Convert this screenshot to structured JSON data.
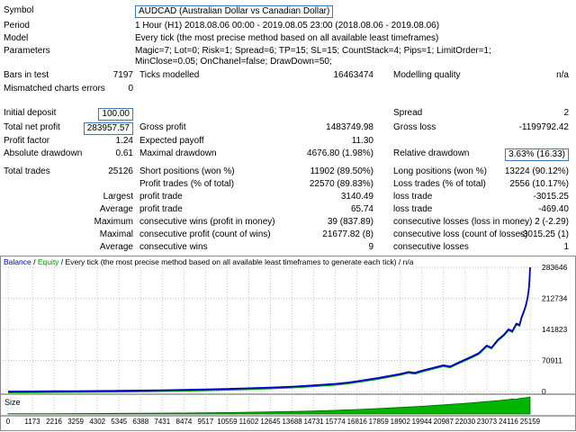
{
  "colors": {
    "highlight_box": "#3a7abf",
    "balance": "#0000c8",
    "equity": "#009900",
    "size_fill": "#00b400",
    "size_stroke": "#006600",
    "grid": "#c6c6c6",
    "separator": "#5a5a5a"
  },
  "report": {
    "rows": [
      {
        "h": 17,
        "cells": [
          {
            "cls": "l1",
            "t": "Symbol",
            "n": "symbol-label"
          },
          {
            "cls": "span",
            "t": "AUDCAD (Australian Dollar vs Canadian Dollar)",
            "box": true,
            "n": "symbol-value"
          }
        ]
      },
      {
        "h": 14,
        "cells": [
          {
            "cls": "l1",
            "t": "Period",
            "n": "period-label"
          },
          {
            "cls": "span",
            "t": "1 Hour (H1) 2018.08.06 00:00 - 2019.08.05 23:00 (2018.08.06 - 2019.08.06)",
            "n": "period-value"
          }
        ]
      },
      {
        "h": 14,
        "cells": [
          {
            "cls": "l1",
            "t": "Model",
            "n": "model-label"
          },
          {
            "cls": "span",
            "t": "Every tick (the most precise method based on all available least timeframes)",
            "n": "model-value"
          }
        ]
      },
      {
        "h": 27,
        "cells": [
          {
            "cls": "l1",
            "t": "Parameters",
            "n": "parameters-label"
          },
          {
            "cls": "span",
            "t": "Magic=7; Lot=0; Risk=1; Spread=6; TP=15; SL=15; CountStack=4; Pips=1; LimitOrder=1; MinClose=0.05; OnChanel=false; DrawDown=50;",
            "n": "parameters-value"
          }
        ]
      },
      {
        "h": 15,
        "cells": [
          {
            "cls": "l1",
            "t": "Bars in test"
          },
          {
            "cls": "v1",
            "t": "7197"
          },
          {
            "cls": "l2",
            "t": "Ticks modelled"
          },
          {
            "cls": "v2",
            "t": "16463474"
          },
          {
            "cls": "l3",
            "t": "Modelling quality"
          },
          {
            "cls": "v3",
            "t": "n/a"
          }
        ]
      },
      {
        "h": 27,
        "cells": [
          {
            "cls": "l1",
            "t": "Mismatched charts errors"
          },
          {
            "cls": "v1",
            "t": "0"
          }
        ]
      },
      {
        "h": 16,
        "cells": [
          {
            "cls": "l1",
            "t": "Initial deposit"
          },
          {
            "cls": "v1",
            "t": "100.00",
            "box": true,
            "n": "initial-deposit-value"
          },
          {
            "cls": "l3",
            "t": "Spread"
          },
          {
            "cls": "v3",
            "t": "2"
          }
        ]
      },
      {
        "h": 15,
        "cells": [
          {
            "cls": "l1",
            "t": "Total net profit"
          },
          {
            "cls": "v1",
            "t": "283957.57",
            "box": true,
            "n": "total-net-profit-value"
          },
          {
            "cls": "l2",
            "t": "Gross profit"
          },
          {
            "cls": "v2",
            "t": "1483749.98"
          },
          {
            "cls": "l3",
            "t": "Gross loss"
          },
          {
            "cls": "v3",
            "t": "-1199792.42"
          }
        ]
      },
      {
        "h": 14,
        "cells": [
          {
            "cls": "l1",
            "t": "Profit factor"
          },
          {
            "cls": "v1",
            "t": "1.24"
          },
          {
            "cls": "l2",
            "t": "Expected payoff"
          },
          {
            "cls": "v2",
            "t": "11.30"
          }
        ]
      },
      {
        "h": 15,
        "cells": [
          {
            "cls": "l1",
            "t": "Absolute drawdown"
          },
          {
            "cls": "v1",
            "t": "0.61"
          },
          {
            "cls": "l2",
            "t": "Maximal drawdown"
          },
          {
            "cls": "v2",
            "t": "4676.80 (1.98%)"
          },
          {
            "cls": "l3",
            "t": "Relative drawdown"
          },
          {
            "cls": "v3",
            "t": "3.63% (16.33)",
            "box": true,
            "n": "relative-drawdown-value"
          }
        ]
      },
      {
        "h": 5,
        "cells": []
      },
      {
        "h": 14,
        "cells": [
          {
            "cls": "l1",
            "t": "Total trades"
          },
          {
            "cls": "v1",
            "t": "25126"
          },
          {
            "cls": "l2",
            "t": "Short positions (won %)"
          },
          {
            "cls": "v2",
            "t": "11902 (89.50%)"
          },
          {
            "cls": "l3",
            "t": "Long positions (won %)"
          },
          {
            "cls": "v3",
            "t": "13224 (90.12%)"
          }
        ]
      },
      {
        "h": 14,
        "cells": [
          {
            "cls": "l2",
            "t": "Profit trades (% of total)"
          },
          {
            "cls": "v2",
            "t": "22570 (89.83%)"
          },
          {
            "cls": "l3",
            "t": "Loss trades (% of total)"
          },
          {
            "cls": "v3",
            "t": "2556 (10.17%)"
          }
        ]
      },
      {
        "h": 14,
        "cells": [
          {
            "cls": "v1",
            "t": "Largest"
          },
          {
            "cls": "l2",
            "t": "profit trade"
          },
          {
            "cls": "v2",
            "t": "3140.49"
          },
          {
            "cls": "l3",
            "t": "loss trade"
          },
          {
            "cls": "v3",
            "t": "-3015.25"
          }
        ]
      },
      {
        "h": 14,
        "cells": [
          {
            "cls": "v1",
            "t": "Average"
          },
          {
            "cls": "l2",
            "t": "profit trade"
          },
          {
            "cls": "v2",
            "t": "65.74"
          },
          {
            "cls": "l3",
            "t": "loss trade"
          },
          {
            "cls": "v3",
            "t": "-469.40"
          }
        ]
      },
      {
        "h": 14,
        "cells": [
          {
            "cls": "v1",
            "t": "Maximum"
          },
          {
            "cls": "l2",
            "t": "consecutive wins (profit in money)"
          },
          {
            "cls": "v2",
            "t": "39 (837.89)"
          },
          {
            "cls": "l3",
            "t": "consecutive losses (loss in money)"
          },
          {
            "cls": "v3",
            "t": "2 (-2.29)"
          }
        ]
      },
      {
        "h": 14,
        "cells": [
          {
            "cls": "v1",
            "t": "Maximal"
          },
          {
            "cls": "l2",
            "t": "consecutive profit (count of wins)"
          },
          {
            "cls": "v2",
            "t": "21677.82 (8)"
          },
          {
            "cls": "l3",
            "t": "consecutive loss (count of losses)"
          },
          {
            "cls": "v3",
            "t": "-3015.25 (1)"
          }
        ]
      },
      {
        "h": 14,
        "cells": [
          {
            "cls": "v1",
            "t": "Average"
          },
          {
            "cls": "l2",
            "t": "consecutive wins"
          },
          {
            "cls": "v2",
            "t": "9"
          },
          {
            "cls": "l3",
            "t": "consecutive losses"
          },
          {
            "cls": "v3",
            "t": "1"
          }
        ]
      }
    ]
  },
  "legend": {
    "balance": "Balance",
    "sep1": " / ",
    "equity": "Equity",
    "rest": " / Every tick (the most precise method based on all available least timeframes to generate each tick) / n/a"
  },
  "chart_data": {
    "type": "line",
    "x_ticks": [
      0,
      1173,
      2216,
      3259,
      4302,
      5345,
      6388,
      7431,
      8474,
      9517,
      10559,
      11602,
      12645,
      13688,
      14731,
      15774,
      16816,
      17859,
      18902,
      19944,
      20987,
      22030,
      23073,
      24116,
      25159
    ],
    "y_ticks": [
      0,
      70911,
      141823,
      212734,
      283646
    ],
    "y_max": 283646,
    "size_label": "Size",
    "size_max": 20,
    "equity_same_as_balance": true,
    "balance_points": [
      [
        0,
        100
      ],
      [
        1173,
        300
      ],
      [
        2216,
        550
      ],
      [
        3259,
        850
      ],
      [
        4302,
        1200
      ],
      [
        5345,
        1650
      ],
      [
        6388,
        2200
      ],
      [
        7431,
        2900
      ],
      [
        8474,
        3700
      ],
      [
        9517,
        4700
      ],
      [
        10559,
        5900
      ],
      [
        11602,
        7300
      ],
      [
        12645,
        9000
      ],
      [
        13688,
        11200
      ],
      [
        14731,
        14000
      ],
      [
        15774,
        17500
      ],
      [
        16400,
        20500
      ],
      [
        16816,
        23500
      ],
      [
        17300,
        27000
      ],
      [
        17859,
        31000
      ],
      [
        18300,
        35000
      ],
      [
        18902,
        40000
      ],
      [
        19300,
        44500
      ],
      [
        19600,
        42500
      ],
      [
        19944,
        47500
      ],
      [
        20400,
        53000
      ],
      [
        20987,
        60000
      ],
      [
        21300,
        57000
      ],
      [
        21700,
        66000
      ],
      [
        22030,
        73000
      ],
      [
        22400,
        81000
      ],
      [
        22700,
        88000
      ],
      [
        23073,
        105000
      ],
      [
        23300,
        100000
      ],
      [
        23600,
        118000
      ],
      [
        23900,
        130000
      ],
      [
        24116,
        142000
      ],
      [
        24300,
        138000
      ],
      [
        24500,
        155000
      ],
      [
        24650,
        152000
      ],
      [
        24750,
        170000
      ],
      [
        24850,
        182000
      ],
      [
        24950,
        196000
      ],
      [
        25000,
        206000
      ],
      [
        25040,
        216000
      ],
      [
        25080,
        228000
      ],
      [
        25110,
        242000
      ],
      [
        25135,
        258000
      ],
      [
        25159,
        283646
      ]
    ],
    "size_points": [
      [
        0,
        0.3
      ],
      [
        2216,
        0.4
      ],
      [
        4302,
        0.6
      ],
      [
        6388,
        0.9
      ],
      [
        8474,
        1.2
      ],
      [
        10559,
        1.7
      ],
      [
        12645,
        2.4
      ],
      [
        13688,
        2.9
      ],
      [
        14731,
        3.5
      ],
      [
        15774,
        4.3
      ],
      [
        16816,
        5.3
      ],
      [
        17859,
        6.4
      ],
      [
        18902,
        7.7
      ],
      [
        19944,
        9.1
      ],
      [
        20987,
        10.7
      ],
      [
        22030,
        12.5
      ],
      [
        23073,
        14.5
      ],
      [
        23600,
        15.6
      ],
      [
        24116,
        16.9
      ],
      [
        24300,
        17.6
      ],
      [
        24450,
        17.2
      ],
      [
        24700,
        18.4
      ],
      [
        24900,
        18.9
      ],
      [
        25080,
        19.6
      ],
      [
        25159,
        20
      ]
    ]
  }
}
